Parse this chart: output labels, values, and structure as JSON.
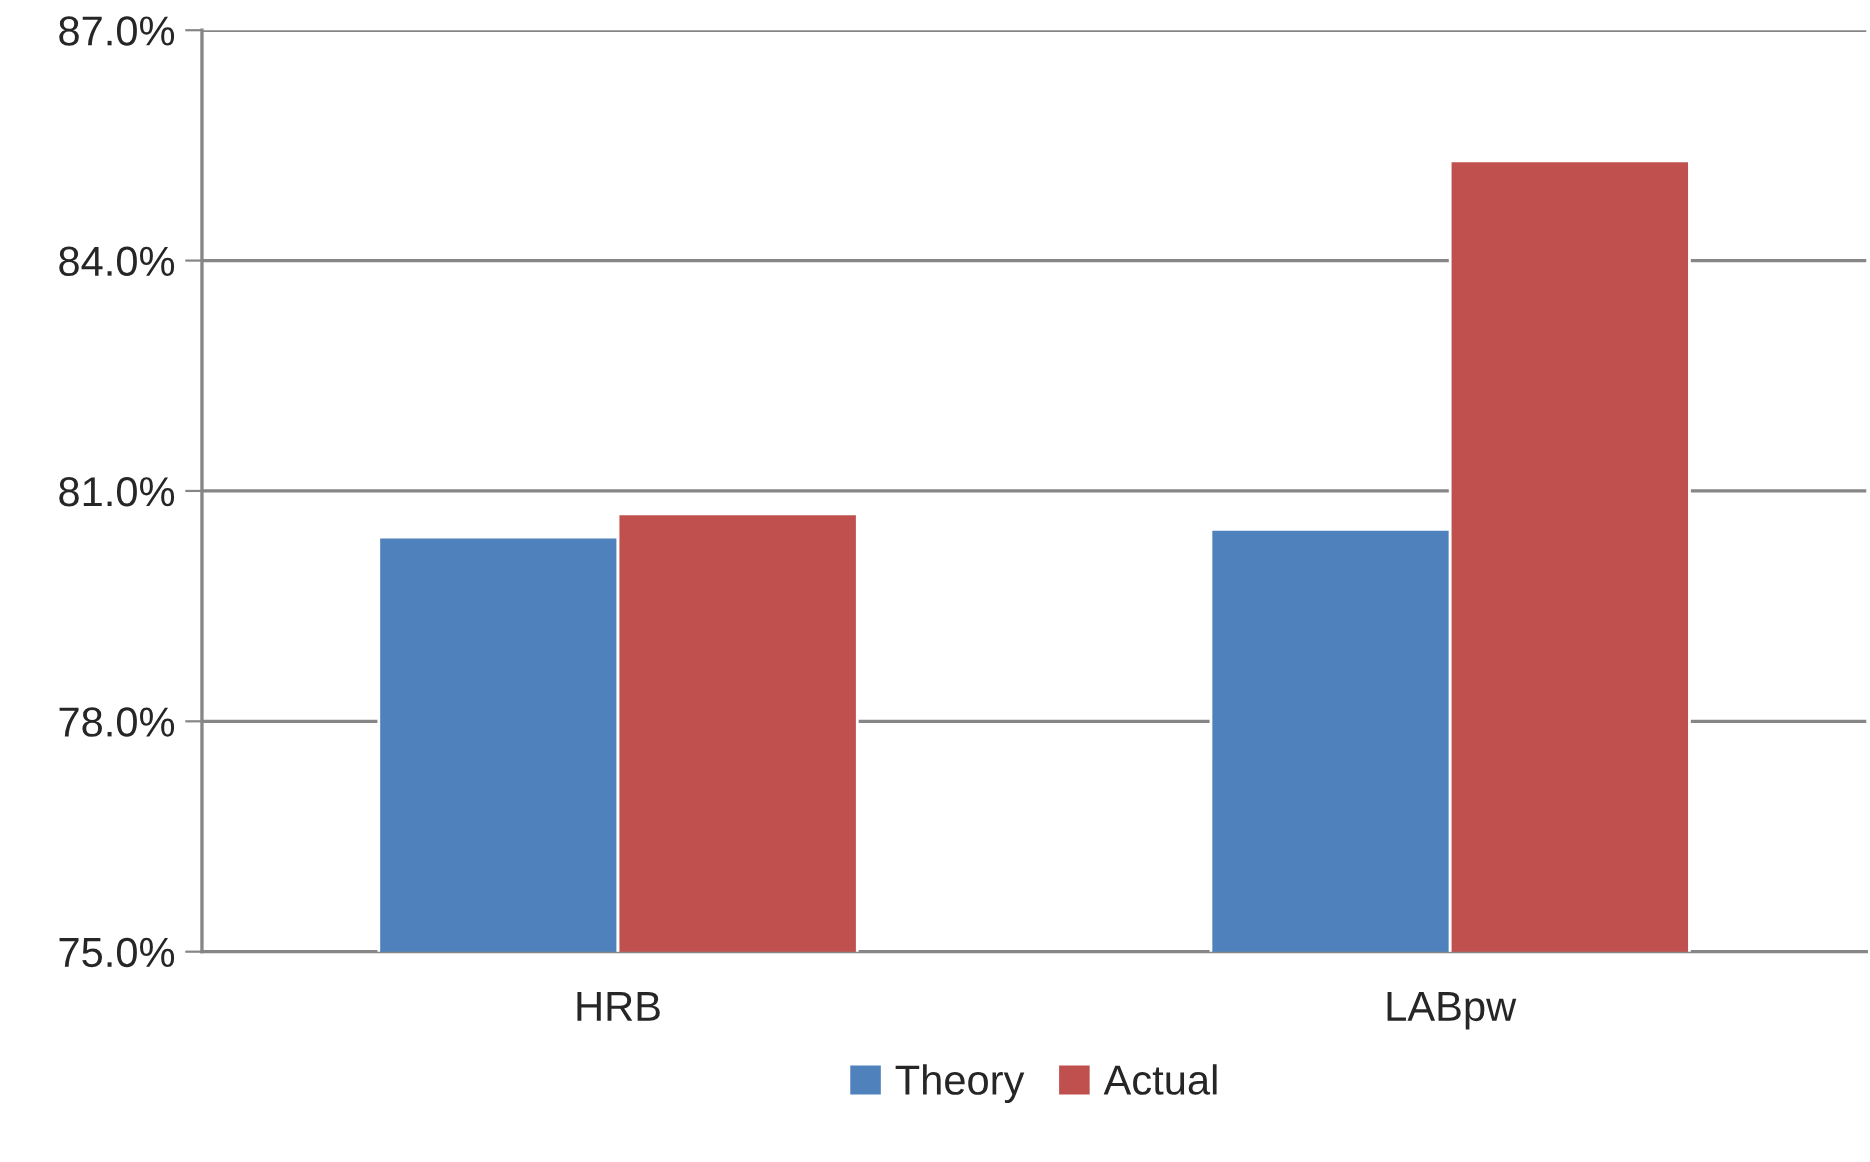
{
  "chart_data": {
    "type": "bar",
    "categories": [
      "HRB",
      "LABpw"
    ],
    "series": [
      {
        "name": "Theory",
        "color": "#4f81bd",
        "values": [
          80.4,
          80.5
        ]
      },
      {
        "name": "Actual",
        "color": "#c0504d",
        "values": [
          80.7,
          85.3
        ]
      }
    ],
    "ylim": [
      75,
      87
    ],
    "yticks": [
      {
        "value": 75,
        "label": "75.0%"
      },
      {
        "value": 78,
        "label": "78.0%"
      },
      {
        "value": 81,
        "label": "81.0%"
      },
      {
        "value": 84,
        "label": "84.0%"
      },
      {
        "value": 87,
        "label": "87.0%"
      }
    ],
    "grid": "y",
    "legend": "bottom"
  }
}
